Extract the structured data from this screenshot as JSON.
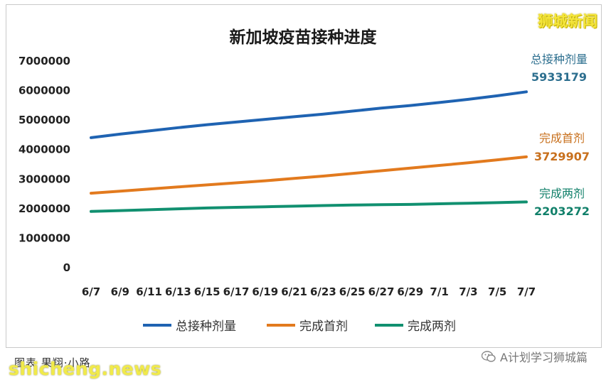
{
  "brand": "狮城新闻",
  "footer": {
    "credit": "图表  果翔·小路",
    "watermark": "shicheng.news",
    "source": "A计划学习狮城篇"
  },
  "annotations": {
    "total": {
      "label": "总接种剂量",
      "value": "5933179"
    },
    "first": {
      "label": "完成首剂",
      "value": "3729907"
    },
    "second": {
      "label": "完成两剂",
      "value": "2203272"
    }
  },
  "colors": {
    "total": "#1f63b2",
    "first": "#e27a1e",
    "second": "#119070",
    "brand": "#f5e63b"
  },
  "chart_data": {
    "type": "line",
    "title": "新加坡疫苗接种进度",
    "xlabel": "",
    "ylabel": "",
    "ylim": [
      0,
      7000000
    ],
    "yticks": [
      "7000000",
      "6000000",
      "5000000",
      "4000000",
      "3000000",
      "2000000",
      "1000000",
      "0"
    ],
    "x": [
      "6/7",
      "6/9",
      "6/11",
      "6/13",
      "6/15",
      "6/17",
      "6/19",
      "6/21",
      "6/23",
      "6/25",
      "6/27",
      "6/29",
      "7/1",
      "7/3",
      "7/5",
      "7/7"
    ],
    "legend_position": "bottom",
    "grid": false,
    "series": [
      {
        "name": "总接种剂量",
        "color": "#1f63b2",
        "values": [
          4380000,
          4500000,
          4610000,
          4720000,
          4820000,
          4910000,
          5000000,
          5090000,
          5180000,
          5280000,
          5380000,
          5470000,
          5570000,
          5680000,
          5800000,
          5933179
        ]
      },
      {
        "name": "完成首剂",
        "color": "#e27a1e",
        "values": [
          2500000,
          2570000,
          2640000,
          2710000,
          2780000,
          2850000,
          2920000,
          3000000,
          3080000,
          3170000,
          3260000,
          3350000,
          3440000,
          3530000,
          3630000,
          3729907
        ]
      },
      {
        "name": "完成两剂",
        "color": "#119070",
        "values": [
          1880000,
          1910000,
          1940000,
          1970000,
          2000000,
          2020000,
          2040000,
          2060000,
          2080000,
          2100000,
          2110000,
          2120000,
          2140000,
          2160000,
          2180000,
          2203272
        ]
      }
    ]
  }
}
